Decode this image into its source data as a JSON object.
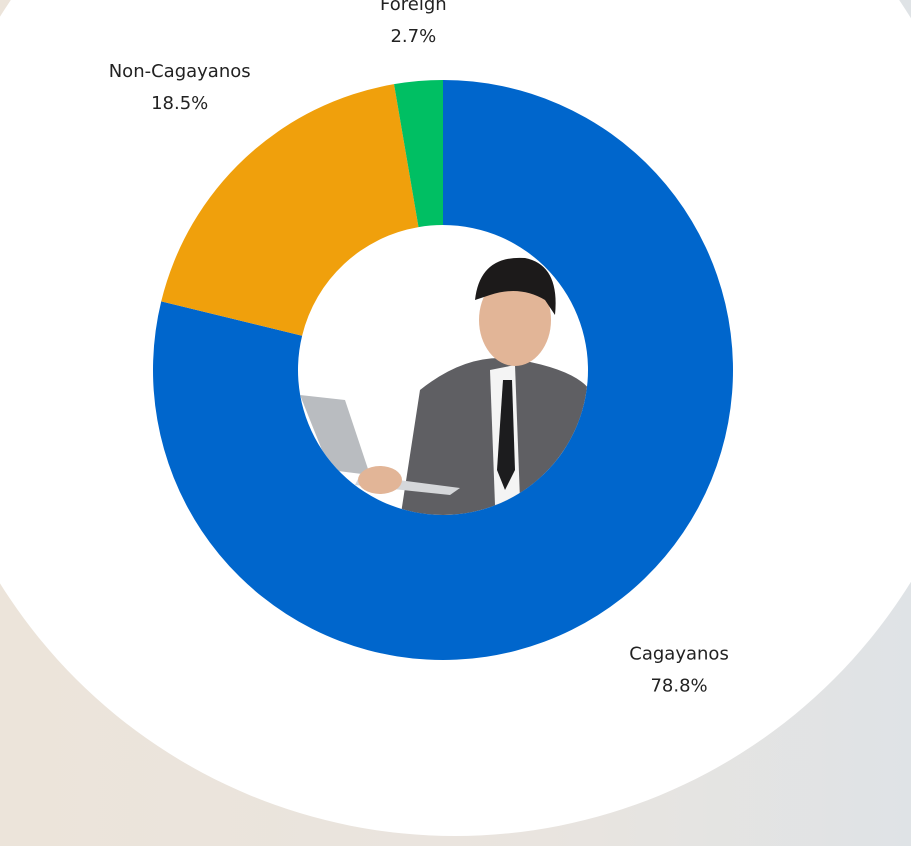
{
  "chart_data": {
    "type": "donut",
    "categories": [
      "Cagayanos",
      "Non-Cagayanos",
      "Foreign"
    ],
    "values": [
      78.8,
      18.5,
      2.7
    ],
    "value_labels": [
      "78.8%",
      "18.5%",
      "2.7%"
    ],
    "colors": [
      "#0066cc",
      "#f0a00c",
      "#00bf63"
    ]
  }
}
